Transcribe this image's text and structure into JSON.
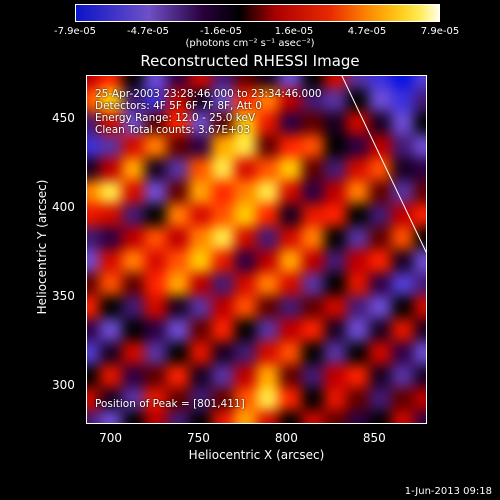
{
  "chart_data": {
    "type": "heatmap",
    "title": "Reconstructed RHESSI Image",
    "xlabel": "Heliocentric X (arcsec)",
    "ylabel": "Heliocentric Y (arcsec)",
    "xlim": [
      686,
      880
    ],
    "ylim": [
      278,
      474
    ],
    "xticks": [
      700,
      750,
      800,
      850
    ],
    "yticks": [
      300,
      350,
      400,
      450
    ],
    "colorbar": {
      "ticks": [
        "-7.9e-05",
        "-4.7e-05",
        "-1.6e-05",
        "1.6e-05",
        "4.7e-05",
        "7.9e-05"
      ],
      "units": "(photons cm⁻² s⁻¹ asec⁻²)",
      "range": [
        -7.9e-05,
        7.9e-05
      ]
    },
    "annotations": {
      "time": "25-Apr-2003 23:28:46.000 to 23:34:46.000",
      "detectors": "Detectors: 4F 5F 6F 7F 8F, Att 0",
      "energy": "Energy Range: 12.0 - 25.0 keV",
      "clean": "Clean     Total counts: 3.67E+03",
      "peak": "Position of Peak = [801,411]"
    },
    "timestamp": "1-Jun-2013 09:18",
    "grid_values": [
      [
        0.55,
        0.7,
        0.45,
        0.2,
        0.35,
        0.6,
        0.3,
        0.5,
        0.4,
        0.2,
        0.45,
        0.6,
        0.25,
        0.1,
        0.0,
        0.15
      ],
      [
        0.75,
        0.9,
        0.3,
        0.1,
        0.6,
        0.4,
        0.2,
        0.7,
        0.8,
        0.55,
        0.3,
        0.25,
        0.45,
        0.2,
        0.1,
        0.3
      ],
      [
        0.3,
        0.6,
        0.2,
        0.5,
        0.7,
        0.2,
        0.5,
        0.9,
        0.65,
        0.35,
        0.5,
        0.4,
        0.6,
        0.4,
        0.2,
        0.45
      ],
      [
        0.1,
        0.25,
        0.6,
        0.8,
        0.5,
        0.35,
        0.85,
        0.95,
        0.5,
        0.7,
        0.75,
        0.45,
        0.35,
        0.55,
        0.3,
        0.2
      ],
      [
        0.4,
        0.55,
        0.85,
        0.4,
        0.25,
        0.75,
        0.95,
        0.6,
        0.75,
        0.9,
        0.5,
        0.3,
        0.6,
        0.75,
        0.4,
        0.35
      ],
      [
        0.8,
        0.95,
        0.6,
        0.2,
        0.5,
        0.85,
        0.7,
        0.8,
        0.95,
        0.6,
        0.35,
        0.55,
        0.8,
        0.5,
        0.25,
        0.5
      ],
      [
        0.65,
        0.6,
        0.3,
        0.45,
        0.8,
        0.6,
        0.75,
        0.9,
        0.7,
        0.4,
        0.65,
        0.7,
        0.45,
        0.3,
        0.55,
        0.7
      ],
      [
        0.3,
        0.35,
        0.55,
        0.75,
        0.55,
        0.8,
        0.95,
        0.6,
        0.3,
        0.6,
        0.8,
        0.45,
        0.25,
        0.5,
        0.75,
        0.45
      ],
      [
        0.2,
        0.6,
        0.8,
        0.6,
        0.75,
        0.9,
        0.65,
        0.35,
        0.55,
        0.85,
        0.55,
        0.3,
        0.55,
        0.7,
        0.4,
        0.2
      ],
      [
        0.5,
        0.75,
        0.5,
        0.7,
        0.85,
        0.55,
        0.3,
        0.6,
        0.8,
        0.6,
        0.25,
        0.45,
        0.65,
        0.35,
        0.15,
        0.3
      ],
      [
        0.7,
        0.45,
        0.3,
        0.6,
        0.4,
        0.25,
        0.55,
        0.75,
        0.5,
        0.3,
        0.5,
        0.6,
        0.3,
        0.2,
        0.45,
        0.6
      ],
      [
        0.35,
        0.2,
        0.45,
        0.35,
        0.2,
        0.5,
        0.7,
        0.45,
        0.25,
        0.55,
        0.7,
        0.4,
        0.2,
        0.4,
        0.65,
        0.4
      ],
      [
        0.15,
        0.4,
        0.6,
        0.25,
        0.45,
        0.65,
        0.4,
        0.3,
        0.6,
        0.75,
        0.45,
        0.25,
        0.45,
        0.6,
        0.35,
        0.2
      ],
      [
        0.45,
        0.65,
        0.35,
        0.5,
        0.7,
        0.4,
        0.25,
        0.55,
        0.85,
        0.5,
        0.3,
        0.55,
        0.7,
        0.4,
        0.25,
        0.4
      ],
      [
        0.6,
        0.4,
        0.25,
        0.65,
        0.5,
        0.3,
        0.5,
        0.75,
        0.95,
        0.7,
        0.45,
        0.65,
        0.5,
        0.3,
        0.5,
        0.55
      ],
      [
        0.3,
        0.2,
        0.45,
        0.55,
        0.3,
        0.45,
        0.65,
        0.85,
        0.6,
        0.45,
        0.6,
        0.5,
        0.35,
        0.45,
        0.6,
        0.35
      ]
    ]
  }
}
